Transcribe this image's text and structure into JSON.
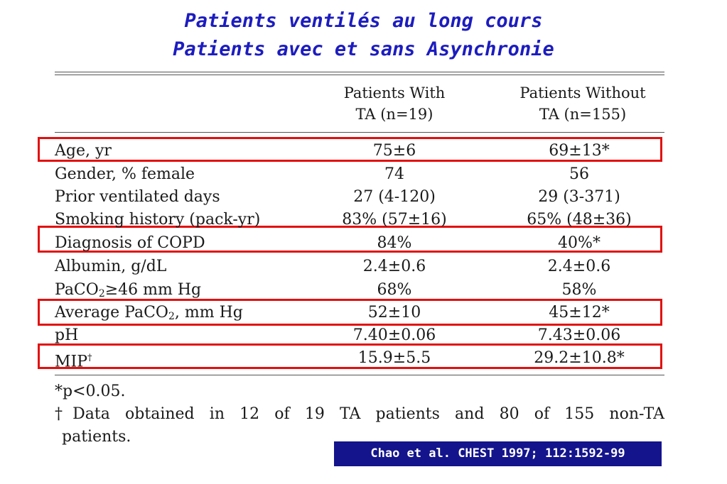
{
  "title": {
    "line1": "Patients ventilés au long cours",
    "line2": "Patients avec et sans Asynchronie"
  },
  "table": {
    "headers": {
      "col1_line1": "Patients With",
      "col1_line2": "TA (n=19)",
      "col2_line1": "Patients Without",
      "col2_line2": "TA (n=155)"
    },
    "rows": [
      {
        "label": "Age, yr",
        "with_ta": "75±6",
        "without_ta": "69±13*",
        "highlighted": true
      },
      {
        "label": "Gender, % female",
        "with_ta": "74",
        "without_ta": "56",
        "highlighted": false
      },
      {
        "label": "Prior ventilated days",
        "with_ta": "27 (4-120)",
        "without_ta": "29 (3-371)",
        "highlighted": false
      },
      {
        "label": "Smoking history (pack-yr)",
        "with_ta": "83% (57±16)",
        "without_ta": "65% (48±36)",
        "highlighted": false
      },
      {
        "label": "Diagnosis of COPD",
        "with_ta": "84%",
        "without_ta": "40%*",
        "highlighted": true
      },
      {
        "label": "Albumin, g/dL",
        "with_ta": "2.4±0.6",
        "without_ta": "2.4±0.6",
        "highlighted": false
      },
      {
        "label_pre": "PaCO",
        "label_sub": "2",
        "label_post": "≥46 mm Hg",
        "with_ta": "68%",
        "without_ta": "58%",
        "highlighted": false
      },
      {
        "label_pre": "Average PaCO",
        "label_sub": "2",
        "label_post": ", mm Hg",
        "with_ta": "52±10",
        "without_ta": "45±12*",
        "highlighted": true
      },
      {
        "label": "pH",
        "with_ta": "7.40±0.06",
        "without_ta": "7.43±0.06",
        "highlighted": false
      },
      {
        "label_pre": "MIP",
        "label_sup": "†",
        "with_ta": "15.9±5.5",
        "without_ta": "29.2±10.8*",
        "highlighted": true
      }
    ]
  },
  "footnotes": {
    "significance": "*p<0.05.",
    "dagger_line1": "†Data obtained in 12 of 19 TA patients and 80 of 155 non-TA",
    "dagger_line2": "patients."
  },
  "citation": "Chao et al. CHEST 1997; 112:1592-99",
  "colors": {
    "title": "#1c1cc0",
    "highlight": "#e21010",
    "citation_bg": "#14148c"
  }
}
